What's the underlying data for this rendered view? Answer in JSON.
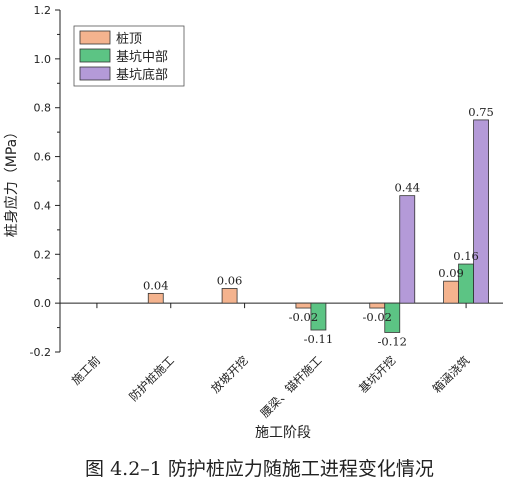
{
  "chart_data": {
    "type": "bar",
    "title": "",
    "xlabel": "施工阶段",
    "ylabel": "桩身应力（MPa）",
    "ylim": [
      -0.2,
      1.2
    ],
    "yticks": [
      "-0.2",
      "0.0",
      "0.2",
      "0.4",
      "0.6",
      "0.8",
      "1.0",
      "1.2"
    ],
    "ytick_values": [
      -0.2,
      0.0,
      0.2,
      0.4,
      0.6,
      0.8,
      1.0,
      1.2
    ],
    "categories": [
      "施工前",
      "防护桩施工",
      "放坡开挖",
      "腰梁、锚杆施工",
      "基坑开挖",
      "箱涵浇筑"
    ],
    "series": [
      {
        "name": "桩顶",
        "color": "#f4b38e",
        "values": [
          null,
          0.04,
          0.06,
          -0.02,
          -0.02,
          0.09
        ],
        "labels": [
          "",
          "0.04",
          "0.06",
          "-0.02",
          "-0.02",
          "0.09"
        ]
      },
      {
        "name": "基坑中部",
        "color": "#5cc484",
        "values": [
          null,
          null,
          null,
          -0.11,
          -0.12,
          0.16
        ],
        "labels": [
          "",
          "",
          "",
          "-0.11",
          "-0.12",
          "0.16"
        ]
      },
      {
        "name": "基坑底部",
        "color": "#b49ad8",
        "values": [
          null,
          null,
          null,
          null,
          0.44,
          0.75
        ],
        "labels": [
          "",
          "",
          "",
          "",
          "0.44",
          "0.75"
        ]
      }
    ],
    "legend_position": "top-left",
    "grid": false
  },
  "caption": "图 4.2–1 防护桩应力随施工进程变化情况"
}
